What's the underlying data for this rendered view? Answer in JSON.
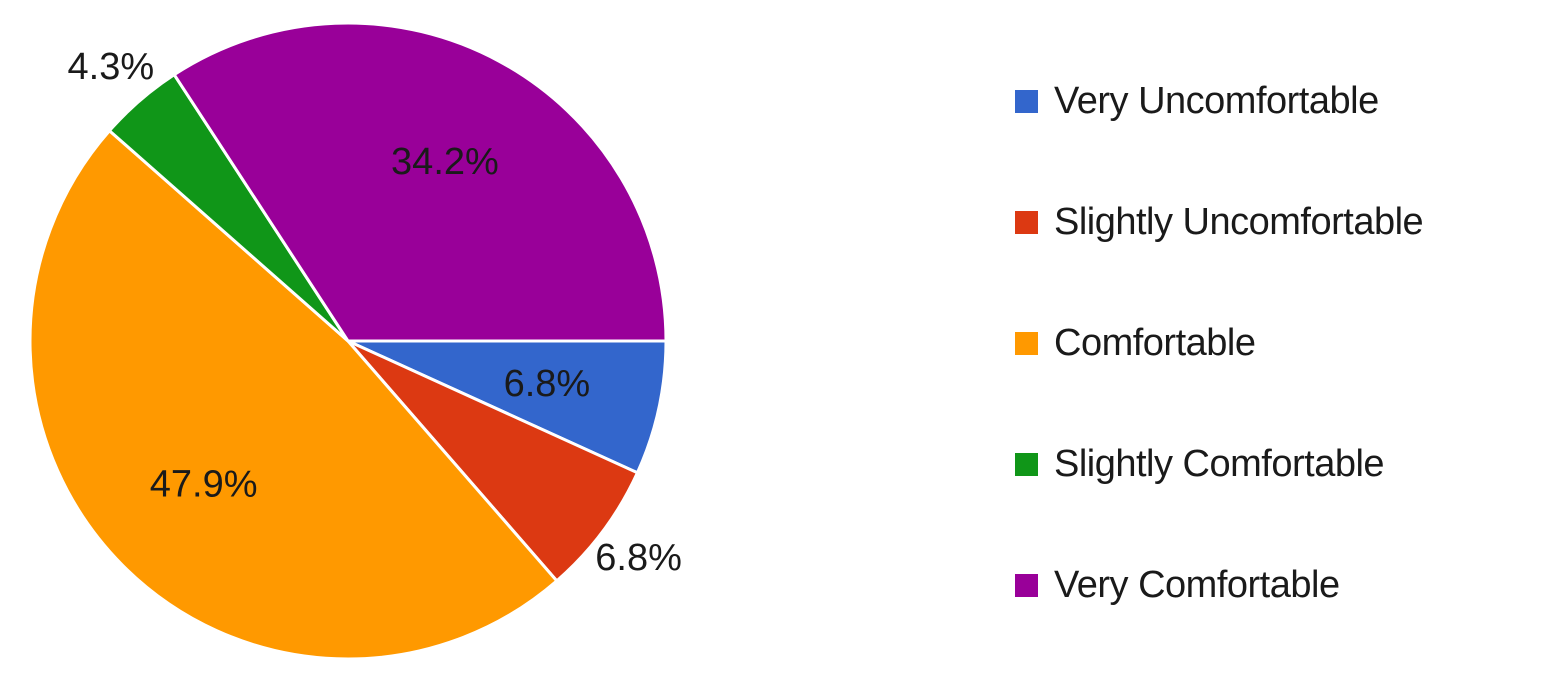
{
  "chart_data": {
    "type": "pie",
    "title": "",
    "start_angle_deg": 0,
    "direction": "clockwise",
    "legend_position": "right",
    "slices": [
      {
        "label": "Very Uncomfortable",
        "value": 6.8,
        "display": "6.8%",
        "color": "#3366cc",
        "label_placement": "inside"
      },
      {
        "label": "Slightly Uncomfortable",
        "value": 6.8,
        "display": "6.8%",
        "color": "#dc3912",
        "label_placement": "outside"
      },
      {
        "label": "Comfortable",
        "value": 47.9,
        "display": "47.9%",
        "color": "#ff9900",
        "label_placement": "inside"
      },
      {
        "label": "Slightly Comfortable",
        "value": 4.3,
        "display": "4.3%",
        "color": "#109618",
        "label_placement": "outside"
      },
      {
        "label": "Very Comfortable",
        "value": 34.2,
        "display": "34.2%",
        "color": "#990099",
        "label_placement": "inside"
      }
    ]
  }
}
